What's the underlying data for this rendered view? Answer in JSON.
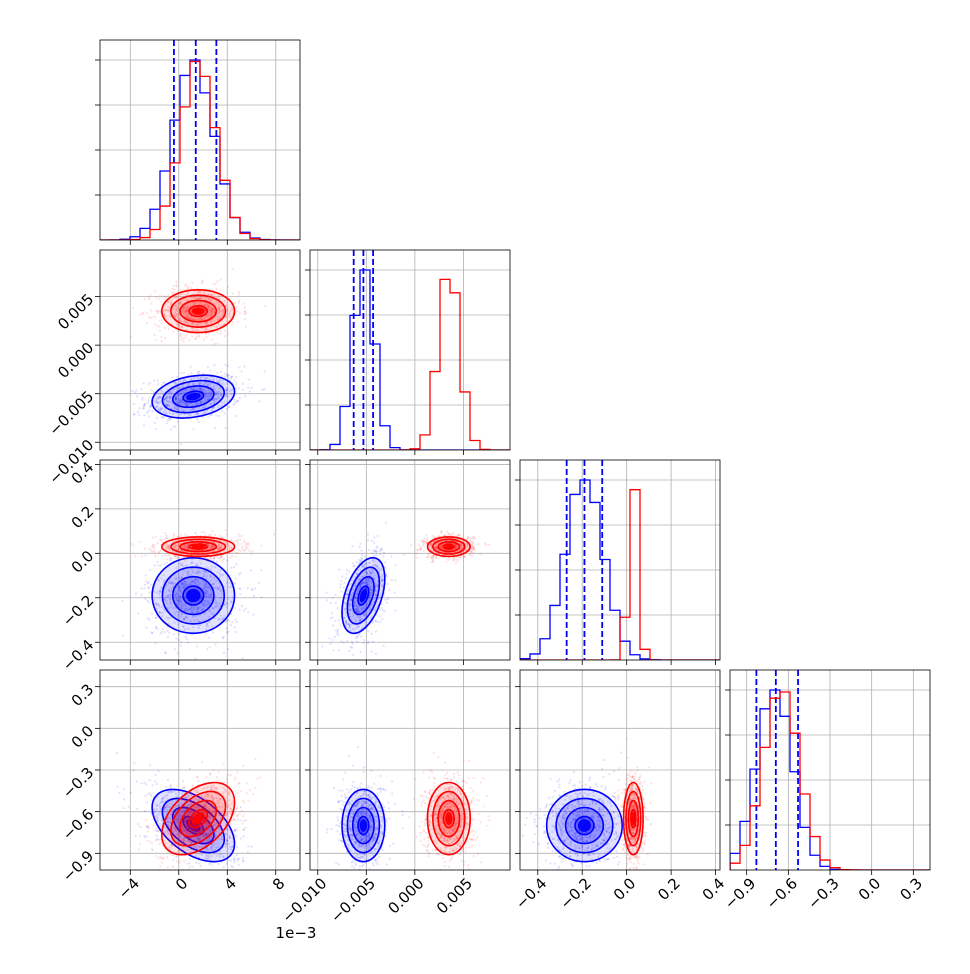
{
  "chart_data": {
    "type": "corner-plot",
    "n_params": 4,
    "grid": true,
    "colors": {
      "red": "#ff0000",
      "blue": "#0000ff"
    },
    "axes": [
      {
        "range": [
          -6.5,
          10.0
        ],
        "ticks": [
          -4,
          0,
          4,
          8
        ],
        "tick_labels": [
          "−4",
          "0",
          "4",
          "8"
        ],
        "offset_text": "1e−3"
      },
      {
        "range": [
          -0.0108,
          0.0098
        ],
        "ticks": [
          -0.01,
          -0.005,
          0.0,
          0.005
        ],
        "tick_labels": [
          "−0.010",
          "−0.005",
          "0.000",
          "0.005"
        ]
      },
      {
        "range": [
          -0.48,
          0.42
        ],
        "ticks": [
          -0.4,
          -0.2,
          0.0,
          0.2,
          0.4
        ],
        "tick_labels": [
          "−0.4",
          "−0.2",
          "0.0",
          "0.2",
          "0.4"
        ]
      },
      {
        "range": [
          -1.02,
          0.42
        ],
        "ticks": [
          -0.9,
          -0.6,
          -0.3,
          0.0,
          0.3
        ],
        "tick_labels": [
          "−0.9",
          "−0.6",
          "−0.3",
          "0.0",
          "0.3"
        ]
      }
    ],
    "series": [
      {
        "color": "red",
        "mean": [
          1.6,
          0.0035,
          0.03,
          -0.65
        ],
        "sd": [
          1.5,
          0.0011,
          0.022,
          0.13
        ],
        "corr": {
          "0-3": 0.45
        },
        "quantile_lines": null
      },
      {
        "color": "blue",
        "mean": [
          1.2,
          -0.0053,
          -0.19,
          -0.7
        ],
        "sd": [
          1.7,
          0.0011,
          0.085,
          0.13
        ],
        "corr": {
          "0-1": 0.25,
          "0-3": -0.5,
          "1-2": 0.45
        },
        "quantile_lines": [
          [
            -0.4,
            1.4,
            3.1
          ],
          [
            -0.0063,
            -0.0053,
            -0.0043
          ],
          [
            -0.27,
            -0.19,
            -0.11
          ],
          [
            -0.83,
            -0.69,
            -0.53
          ]
        ]
      }
    ]
  }
}
